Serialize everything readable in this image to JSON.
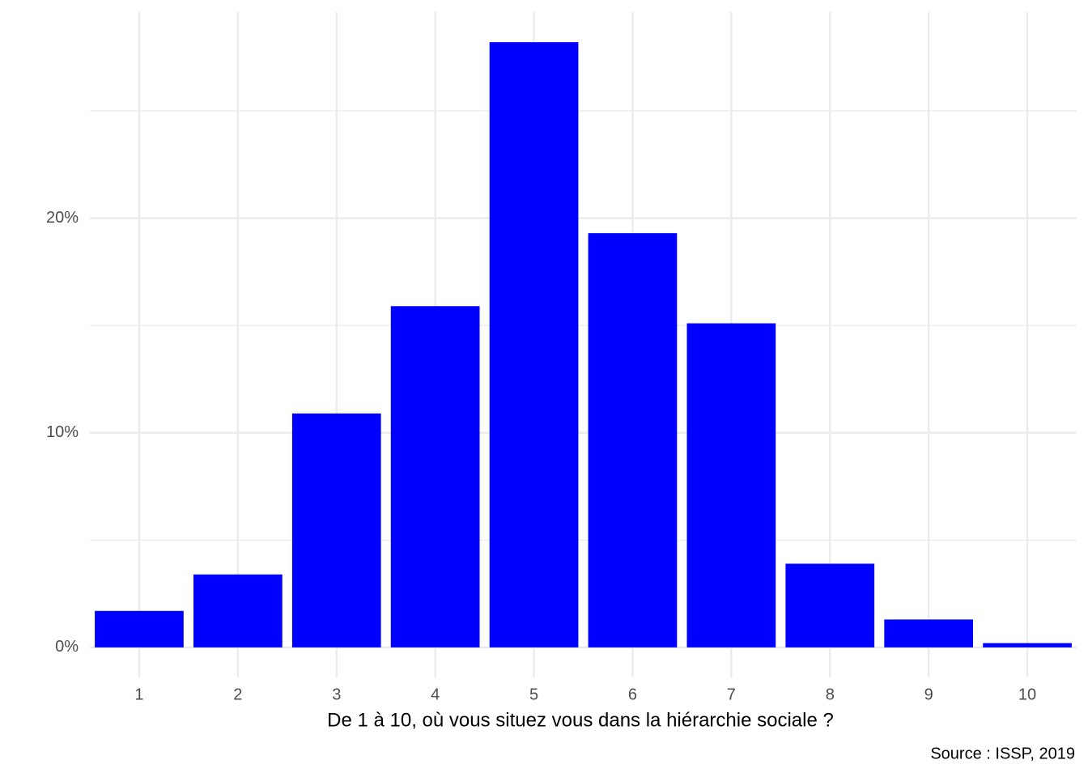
{
  "chart_data": {
    "type": "bar",
    "x_label": "De 1 à 10, où vous situez vous dans la hiérarchie sociale ?",
    "caption": "Source : ISSP, 2019",
    "categories": [
      "1",
      "2",
      "3",
      "4",
      "5",
      "6",
      "7",
      "8",
      "9",
      "10"
    ],
    "values": [
      1.7,
      3.4,
      10.9,
      15.9,
      28.2,
      19.3,
      15.1,
      3.9,
      1.3,
      0.2
    ],
    "color": "#0000ff",
    "ylim": [
      -1.4,
      29.6
    ],
    "yticks": [
      {
        "value": 0,
        "label": "0%"
      },
      {
        "value": 10,
        "label": "10%"
      },
      {
        "value": 20,
        "label": "20%"
      }
    ],
    "minor_yticks": [
      5,
      15,
      25
    ],
    "grid": true
  }
}
